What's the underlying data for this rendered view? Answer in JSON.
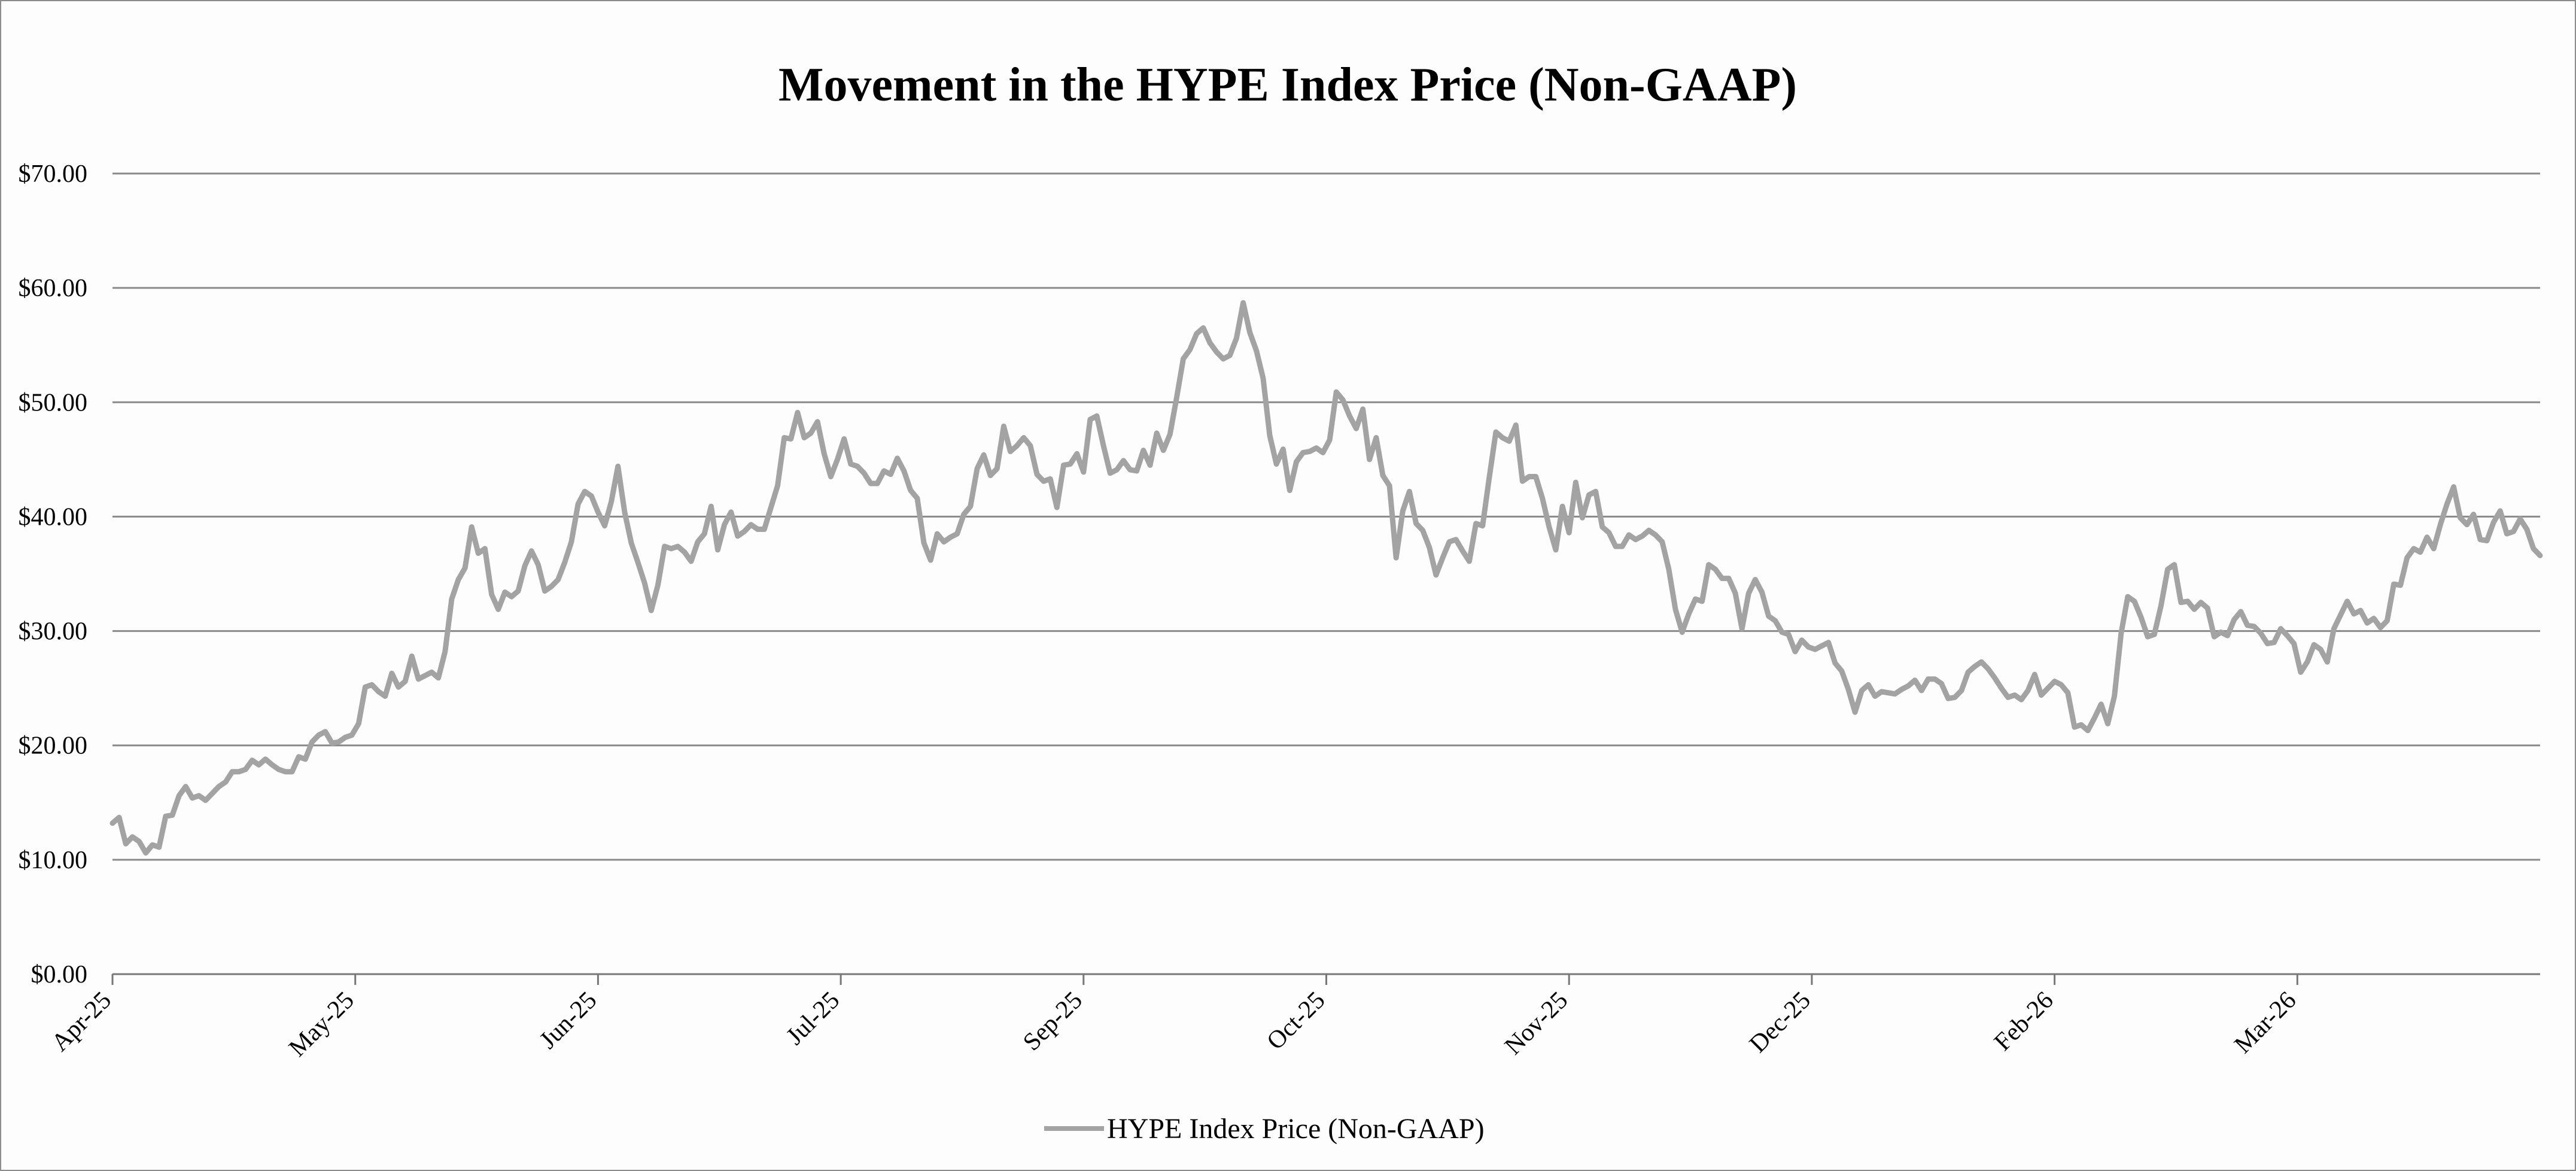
{
  "chart_data": {
    "type": "line",
    "title": "Movement in the HYPE Index Price (Non-GAAP)",
    "xlabel": "",
    "ylabel": "",
    "ylim": [
      0,
      70
    ],
    "y_ticks": [
      "$0.00",
      "$10.00",
      "$20.00",
      "$30.00",
      "$40.00",
      "$50.00",
      "$60.00",
      "$70.00"
    ],
    "y_tick_values": [
      0,
      10,
      20,
      30,
      40,
      50,
      60,
      70
    ],
    "x_ticks": [
      "Apr-25",
      "May-25",
      "Jun-25",
      "Jul-25",
      "Sep-25",
      "Oct-25",
      "Nov-25",
      "Dec-25",
      "Feb-26",
      "Mar-26"
    ],
    "grid": true,
    "legend_position": "bottom",
    "series": [
      {
        "name": "HYPE Index Price (Non-GAAP)",
        "color": "#a3a3a3",
        "values": [
          13.2,
          13.7,
          11.4,
          12.0,
          11.6,
          10.6,
          11.3,
          11.1,
          13.8,
          13.9,
          15.6,
          16.4,
          15.4,
          15.6,
          15.2,
          15.8,
          16.4,
          16.8,
          17.7,
          17.7,
          17.9,
          18.7,
          18.3,
          18.8,
          18.3,
          17.9,
          17.7,
          17.7,
          19.0,
          18.8,
          20.3,
          20.9,
          21.2,
          20.2,
          20.3,
          20.7,
          20.9,
          21.9,
          25.1,
          25.3,
          24.7,
          24.3,
          26.3,
          25.1,
          25.6,
          27.8,
          25.8,
          26.1,
          26.4,
          25.9,
          28.2,
          32.8,
          34.5,
          35.5,
          39.1,
          36.8,
          37.2,
          33.2,
          31.9,
          33.4,
          33.0,
          33.5,
          35.7,
          37.0,
          35.8,
          33.5,
          33.9,
          34.5,
          36.0,
          37.8,
          41.1,
          42.2,
          41.8,
          40.4,
          39.2,
          41.3,
          44.4,
          40.4,
          37.7,
          36.0,
          34.2,
          31.8,
          34.0,
          37.4,
          37.2,
          37.4,
          36.9,
          36.1,
          37.8,
          38.5,
          40.9,
          37.1,
          39.3,
          40.4,
          38.3,
          38.7,
          39.3,
          38.9,
          38.9,
          40.8,
          42.7,
          46.9,
          46.8,
          49.1,
          46.9,
          47.3,
          48.3,
          45.5,
          43.5,
          45.0,
          46.8,
          44.6,
          44.4,
          43.8,
          42.9,
          42.9,
          44.0,
          43.7,
          45.1,
          44.0,
          42.3,
          41.6,
          37.7,
          36.2,
          38.5,
          37.8,
          38.2,
          38.5,
          40.2,
          40.9,
          44.2,
          45.4,
          43.6,
          44.2,
          47.9,
          45.7,
          46.2,
          46.9,
          46.2,
          43.7,
          43.1,
          43.3,
          40.8,
          44.5,
          44.6,
          45.5,
          43.9,
          48.5,
          48.8,
          46.2,
          43.8,
          44.1,
          44.9,
          44.1,
          44.0,
          45.8,
          44.5,
          47.3,
          45.8,
          47.2,
          50.4,
          53.8,
          54.6,
          56.0,
          56.5,
          55.2,
          54.4,
          53.8,
          54.1,
          55.6,
          58.7,
          56.1,
          54.5,
          52.1,
          47.1,
          44.6,
          45.9,
          42.3,
          44.8,
          45.6,
          45.7,
          46.0,
          45.6,
          46.7,
          50.9,
          50.2,
          48.8,
          47.7,
          49.4,
          45.0,
          46.9,
          43.6,
          42.7,
          36.4,
          40.5,
          42.2,
          39.4,
          38.8,
          37.3,
          34.9,
          36.4,
          37.8,
          38.0,
          37.0,
          36.1,
          39.4,
          39.2,
          43.4,
          47.4,
          46.9,
          46.6,
          48.0,
          43.1,
          43.5,
          43.5,
          41.6,
          39.1,
          37.1,
          40.9,
          38.6,
          43.0,
          39.9,
          41.9,
          42.2,
          39.1,
          38.6,
          37.4,
          37.4,
          38.4,
          38.0,
          38.3,
          38.8,
          38.4,
          37.8,
          35.4,
          31.9,
          29.9,
          31.5,
          32.8,
          32.6,
          35.8,
          35.4,
          34.6,
          34.6,
          33.3,
          30.2,
          33.3,
          34.5,
          33.4,
          31.3,
          30.9,
          29.9,
          29.7,
          28.2,
          29.2,
          28.6,
          28.4,
          28.7,
          29.0,
          27.2,
          26.5,
          24.9,
          22.9,
          24.8,
          25.3,
          24.3,
          24.7,
          24.6,
          24.5,
          24.9,
          25.2,
          25.7,
          24.8,
          25.8,
          25.8,
          25.4,
          24.1,
          24.2,
          24.8,
          26.4,
          26.9,
          27.3,
          26.7,
          25.9,
          25.0,
          24.2,
          24.4,
          24.0,
          24.8,
          26.2,
          24.4,
          25.0,
          25.6,
          25.3,
          24.6,
          21.6,
          21.8,
          21.3,
          22.4,
          23.6,
          21.9,
          24.3,
          29.8,
          33.0,
          32.6,
          31.2,
          29.5,
          29.7,
          32.2,
          35.4,
          35.8,
          32.5,
          32.6,
          31.9,
          32.5,
          32.0,
          29.5,
          29.9,
          29.6,
          31.0,
          31.7,
          30.5,
          30.4,
          29.8,
          28.9,
          29.0,
          30.2,
          29.6,
          28.9,
          26.4,
          27.3,
          28.8,
          28.4,
          27.3,
          30.2,
          31.4,
          32.6,
          31.5,
          31.8,
          30.7,
          31.1,
          30.3,
          30.9,
          34.1,
          34.0,
          36.4,
          37.2,
          36.9,
          38.2,
          37.2,
          39.3,
          41.1,
          42.6,
          39.9,
          39.3,
          40.2,
          38.0,
          37.9,
          39.5,
          40.5,
          38.5,
          38.7,
          39.8,
          38.9,
          37.2,
          36.6
        ]
      }
    ]
  }
}
